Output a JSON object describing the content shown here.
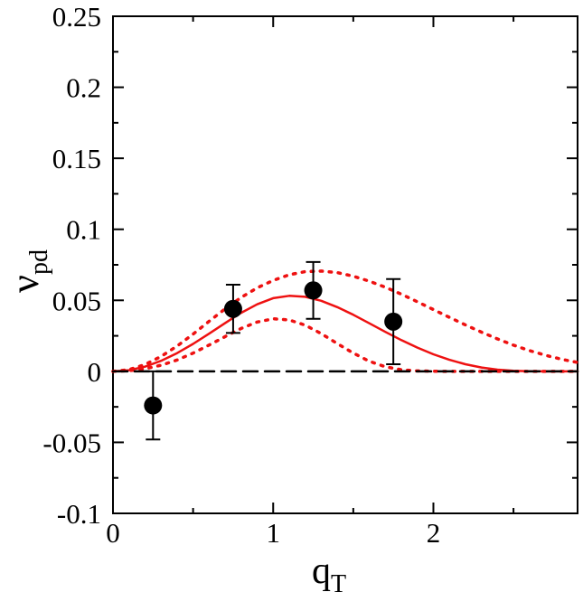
{
  "chart_data": {
    "type": "line",
    "title": "",
    "xlabel": "q",
    "xlabel_sub": "T",
    "ylabel": "ν",
    "ylabel_sub": "pd",
    "xlim": [
      0,
      2.9
    ],
    "ylim": [
      -0.1,
      0.25
    ],
    "x_ticks": [
      {
        "value": 0,
        "label": "0"
      },
      {
        "value": 1,
        "label": "1"
      },
      {
        "value": 2,
        "label": "2"
      }
    ],
    "y_ticks": [
      {
        "value": -0.1,
        "label": "-0.1"
      },
      {
        "value": -0.05,
        "label": "-0.05"
      },
      {
        "value": 0,
        "label": "0"
      },
      {
        "value": 0.05,
        "label": "0.05"
      },
      {
        "value": 0.1,
        "label": "0.1"
      },
      {
        "value": 0.15,
        "label": "0.15"
      },
      {
        "value": 0.2,
        "label": "0.2"
      },
      {
        "value": 0.25,
        "label": "0.25"
      }
    ],
    "grid": false,
    "colors": {
      "data": "#000000",
      "model": "#ee1111",
      "zero_line": "#000000"
    },
    "series": [
      {
        "style": "points-with-errorbars",
        "x": [
          0.25,
          0.75,
          1.25,
          1.75
        ],
        "y": [
          -0.024,
          0.044,
          0.057,
          0.035
        ],
        "err": [
          0.024,
          0.017,
          0.02,
          0.03
        ]
      },
      {
        "style": "solid",
        "x": [
          0,
          0.1,
          0.2,
          0.3,
          0.4,
          0.5,
          0.6,
          0.7,
          0.8,
          0.9,
          1.0,
          1.1,
          1.2,
          1.3,
          1.4,
          1.5,
          1.6,
          1.7,
          1.8,
          1.9,
          2.0,
          2.1,
          2.2,
          2.3,
          2.4,
          2.5,
          2.6,
          2.7,
          2.8,
          2.9
        ],
        "y": [
          0,
          0.0008,
          0.0033,
          0.0074,
          0.0128,
          0.0193,
          0.0265,
          0.034,
          0.0412,
          0.0472,
          0.0515,
          0.0532,
          0.0525,
          0.0497,
          0.0452,
          0.0398,
          0.0338,
          0.0278,
          0.022,
          0.0167,
          0.012,
          0.0081,
          0.005,
          0.0027,
          0.0012,
          0.0004,
          0.0001,
          0,
          0,
          0
        ]
      },
      {
        "style": "dotted",
        "x": [
          0,
          0.1,
          0.2,
          0.3,
          0.4,
          0.5,
          0.6,
          0.7,
          0.8,
          0.9,
          1.0,
          1.1,
          1.2,
          1.3,
          1.4,
          1.5,
          1.6,
          1.7,
          1.8,
          1.9,
          2.0,
          2.1,
          2.2,
          2.3,
          2.4,
          2.5,
          2.6,
          2.7,
          2.8,
          2.9
        ],
        "y": [
          0,
          0.0012,
          0.0048,
          0.0105,
          0.0178,
          0.0262,
          0.0352,
          0.044,
          0.052,
          0.0588,
          0.064,
          0.068,
          0.0702,
          0.0706,
          0.0695,
          0.067,
          0.0635,
          0.0592,
          0.0543,
          0.049,
          0.0435,
          0.038,
          0.0327,
          0.0276,
          0.0228,
          0.0184,
          0.0146,
          0.0113,
          0.0085,
          0.0063
        ]
      },
      {
        "style": "dotted",
        "x": [
          0,
          0.1,
          0.2,
          0.3,
          0.4,
          0.5,
          0.6,
          0.7,
          0.8,
          0.9,
          1.0,
          1.1,
          1.2,
          1.3,
          1.4,
          1.5,
          1.6,
          1.7,
          1.8,
          1.9,
          2.0,
          2.1,
          2.2,
          2.3,
          2.4,
          2.5,
          2.6,
          2.7,
          2.8,
          2.9
        ],
        "y": [
          0,
          0.0004,
          0.0018,
          0.0043,
          0.008,
          0.0128,
          0.0185,
          0.0245,
          0.0302,
          0.0347,
          0.037,
          0.0362,
          0.0325,
          0.0266,
          0.0196,
          0.0128,
          0.0071,
          0.0032,
          0.0011,
          0.0003,
          0.0001,
          0,
          0,
          0,
          0,
          0,
          0,
          0,
          0,
          0
        ]
      },
      {
        "style": "dashed",
        "x": [
          0,
          2.9
        ],
        "y": [
          0,
          0
        ]
      }
    ]
  }
}
